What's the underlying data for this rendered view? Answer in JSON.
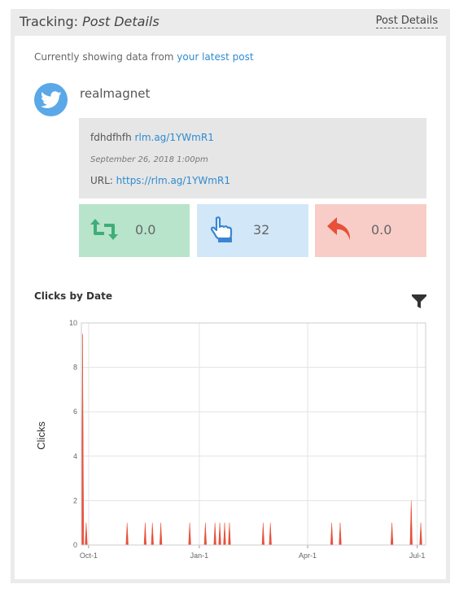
{
  "header": {
    "title_prefix": "Tracking: ",
    "title_em": "Post Details",
    "link_label": "Post Details"
  },
  "showing": {
    "prefix": "Currently showing data from ",
    "link": "your latest post"
  },
  "account": {
    "name": "realmagnet",
    "icon": "twitter-icon",
    "brand_color": "#5aa8e8"
  },
  "post": {
    "text": "fdhdfhfh ",
    "text_link": "rlm.ag/1YWmR1",
    "date": "September 26, 2018 1:00pm",
    "url_label": "URL: ",
    "url": "https://rlm.ag/1YWmR1"
  },
  "stats": {
    "retweets": {
      "value": "0.0",
      "icon": "retweet-icon",
      "color": "#b7e4cb"
    },
    "clicks": {
      "value": "32",
      "icon": "pointer-hand-icon",
      "color": "#d2e7f7"
    },
    "replies": {
      "value": "0.0",
      "icon": "reply-icon",
      "color": "#f8cdc7"
    }
  },
  "chart_section": {
    "title": "Clicks by Date",
    "filter_icon": "filter-icon"
  },
  "chart_data": {
    "type": "area",
    "title": "",
    "xlabel": "",
    "ylabel": "Clicks",
    "ylim": [
      0,
      10
    ],
    "yticks": [
      0,
      2,
      4,
      6,
      8,
      10
    ],
    "xticks": [
      {
        "label": "Oct-1",
        "day": 0
      },
      {
        "label": "Jan-1",
        "day": 92
      },
      {
        "label": "Apr-1",
        "day": 182
      },
      {
        "label": "Jul-1",
        "day": 273
      }
    ],
    "xlim_days": [
      -6,
      280
    ],
    "color": "#e8503a",
    "grid": true,
    "series": [
      {
        "points": [
          {
            "day": -5,
            "value": 9.5
          },
          {
            "day": -2,
            "value": 1
          },
          {
            "day": 32,
            "value": 1
          },
          {
            "day": 47,
            "value": 1
          },
          {
            "day": 53,
            "value": 1
          },
          {
            "day": 60,
            "value": 1
          },
          {
            "day": 84,
            "value": 1
          },
          {
            "day": 97,
            "value": 1
          },
          {
            "day": 105,
            "value": 1
          },
          {
            "day": 109,
            "value": 1
          },
          {
            "day": 113,
            "value": 1
          },
          {
            "day": 117,
            "value": 1
          },
          {
            "day": 145,
            "value": 1
          },
          {
            "day": 151,
            "value": 1
          },
          {
            "day": 202,
            "value": 1
          },
          {
            "day": 209,
            "value": 1
          },
          {
            "day": 252,
            "value": 1
          },
          {
            "day": 268,
            "value": 2
          },
          {
            "day": 276,
            "value": 1
          }
        ]
      }
    ]
  }
}
